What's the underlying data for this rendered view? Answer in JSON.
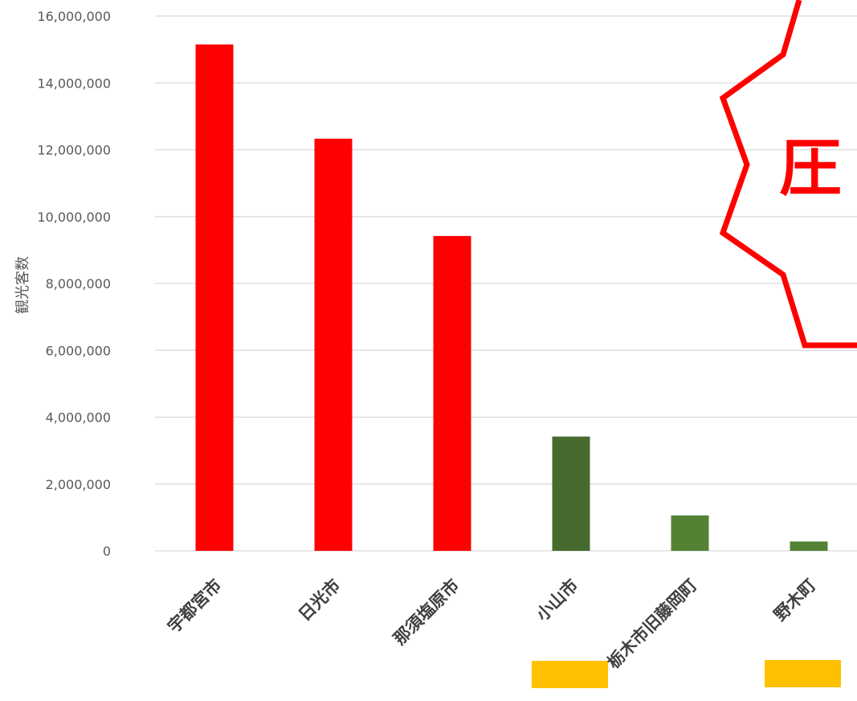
{
  "chart_data": {
    "type": "bar",
    "title": "",
    "xlabel": "",
    "ylabel": "観光客数",
    "ylim": [
      0,
      16000000
    ],
    "yticks": [
      0,
      2000000,
      4000000,
      6000000,
      8000000,
      10000000,
      12000000,
      14000000,
      16000000
    ],
    "ytick_labels": [
      "0",
      "2,000,000",
      "4,000,000",
      "6,000,000",
      "8,000,000",
      "10,000,000",
      "12,000,000",
      "14,000,000",
      "16,000,000"
    ],
    "categories": [
      "宇都宮市",
      "日光市",
      "那須塩原市",
      "小山市",
      "栃木市旧藤岡町",
      "野木町"
    ],
    "values": [
      15150000,
      12330000,
      9420000,
      3420000,
      1060000,
      280000
    ],
    "bar_colors": [
      "#ff0000",
      "#ff0000",
      "#ff0000",
      "#476b2e",
      "#548235",
      "#548235"
    ],
    "grid": true,
    "legend": "none",
    "annotations": {
      "callout_text": "圧",
      "callout_color": "#ff0000",
      "highlight_color": "#ffc000"
    }
  }
}
